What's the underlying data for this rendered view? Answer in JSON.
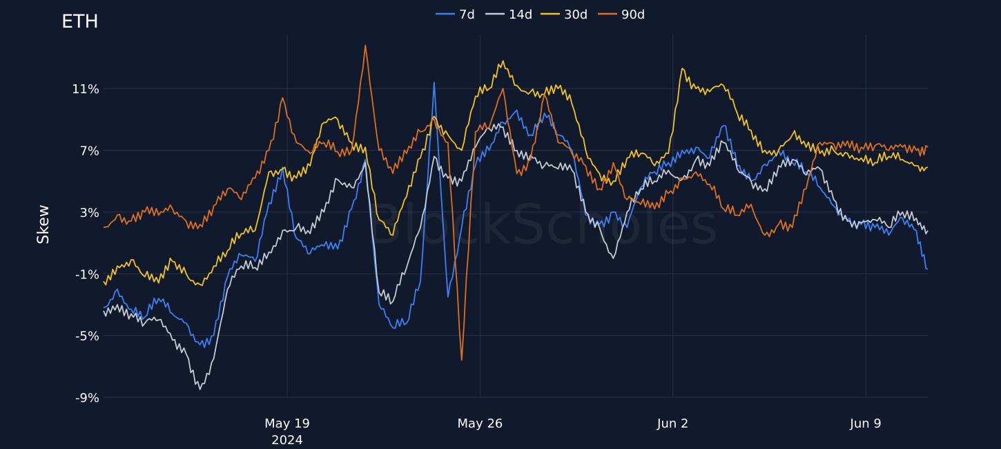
{
  "chart_data": {
    "type": "line",
    "title": "ETH",
    "ylabel": "Skew",
    "xlabel": "",
    "watermark": "BlockScholes",
    "x_ticks": [
      {
        "date": "2024-05-19",
        "label": "May 19",
        "sublabel": "2024"
      },
      {
        "date": "2024-05-26",
        "label": "May 26",
        "sublabel": ""
      },
      {
        "date": "2024-06-02",
        "label": "Jun 2",
        "sublabel": ""
      },
      {
        "date": "2024-06-09",
        "label": "Jun 9",
        "sublabel": ""
      }
    ],
    "y_ticks": [
      {
        "value": 11,
        "label": "11%"
      },
      {
        "value": 7,
        "label": "7%"
      },
      {
        "value": 3,
        "label": "3%"
      },
      {
        "value": -1,
        "label": "-1%"
      },
      {
        "value": -5,
        "label": "-5%"
      },
      {
        "value": -9,
        "label": "-9%"
      }
    ],
    "xlim": [
      "2024-05-12T08:00",
      "2024-06-11T06:00"
    ],
    "ylim": [
      -9,
      14.5
    ],
    "grid": true,
    "legend_position": "top-center",
    "series": [
      {
        "name": "7d",
        "color": "#3b82f6",
        "points": [
          [
            "2024-05-12T08:00",
            -3.2
          ],
          [
            "2024-05-12T20:00",
            -2.0
          ],
          [
            "2024-05-13T08:00",
            -3.3
          ],
          [
            "2024-05-13T20:00",
            -3.8
          ],
          [
            "2024-05-14T08:00",
            -2.6
          ],
          [
            "2024-05-14T20:00",
            -3.6
          ],
          [
            "2024-05-15T08:00",
            -4.2
          ],
          [
            "2024-05-15T20:00",
            -5.6
          ],
          [
            "2024-05-16T08:00",
            -5.0
          ],
          [
            "2024-05-16T20:00",
            -1.2
          ],
          [
            "2024-05-17T08:00",
            0.2
          ],
          [
            "2024-05-17T20:00",
            -0.2
          ],
          [
            "2024-05-18T08:00",
            3.6
          ],
          [
            "2024-05-18T20:00",
            5.9
          ],
          [
            "2024-05-19T08:00",
            1.3
          ],
          [
            "2024-05-19T20:00",
            0.3
          ],
          [
            "2024-05-20T08:00",
            0.8
          ],
          [
            "2024-05-20T20:00",
            0.6
          ],
          [
            "2024-05-21T08:00",
            3.2
          ],
          [
            "2024-05-21T20:00",
            6.4
          ],
          [
            "2024-05-22T08:00",
            -3.0
          ],
          [
            "2024-05-22T20:00",
            -4.5
          ],
          [
            "2024-05-23T08:00",
            -4.2
          ],
          [
            "2024-05-23T20:00",
            -1.5
          ],
          [
            "2024-05-24T08:00",
            11.4
          ],
          [
            "2024-05-24T20:00",
            -2.5
          ],
          [
            "2024-05-25T08:00",
            2.0
          ],
          [
            "2024-05-25T20:00",
            6.0
          ],
          [
            "2024-05-26T08:00",
            7.0
          ],
          [
            "2024-05-26T20:00",
            8.8
          ],
          [
            "2024-05-27T08:00",
            9.6
          ],
          [
            "2024-05-27T20:00",
            8.0
          ],
          [
            "2024-05-28T08:00",
            9.4
          ],
          [
            "2024-05-28T20:00",
            8.0
          ],
          [
            "2024-05-29T08:00",
            7.0
          ],
          [
            "2024-05-29T20:00",
            2.8
          ],
          [
            "2024-05-30T08:00",
            2.2
          ],
          [
            "2024-05-30T20:00",
            3.0
          ],
          [
            "2024-05-31T08:00",
            2.0
          ],
          [
            "2024-05-31T20:00",
            4.6
          ],
          [
            "2024-06-01T08:00",
            5.6
          ],
          [
            "2024-06-01T20:00",
            6.2
          ],
          [
            "2024-06-02T08:00",
            7.0
          ],
          [
            "2024-06-02T20:00",
            7.2
          ],
          [
            "2024-06-03T08:00",
            6.5
          ],
          [
            "2024-06-03T20:00",
            8.6
          ],
          [
            "2024-06-04T08:00",
            6.0
          ],
          [
            "2024-06-04T20:00",
            5.0
          ],
          [
            "2024-06-05T08:00",
            6.1
          ],
          [
            "2024-06-05T20:00",
            7.0
          ],
          [
            "2024-06-06T08:00",
            6.2
          ],
          [
            "2024-06-06T20:00",
            5.6
          ],
          [
            "2024-06-07T08:00",
            4.6
          ],
          [
            "2024-06-07T20:00",
            3.4
          ],
          [
            "2024-06-08T08:00",
            2.5
          ],
          [
            "2024-06-08T20:00",
            2.2
          ],
          [
            "2024-06-09T08:00",
            2.0
          ],
          [
            "2024-06-09T20:00",
            1.5
          ],
          [
            "2024-06-10T08:00",
            2.6
          ],
          [
            "2024-06-10T20:00",
            1.8
          ],
          [
            "2024-06-11T06:00",
            -0.7
          ]
        ]
      },
      {
        "name": "14d",
        "color": "#c6ccd4",
        "points": [
          [
            "2024-05-12T08:00",
            -3.4
          ],
          [
            "2024-05-12T20:00",
            -3.0
          ],
          [
            "2024-05-13T08:00",
            -3.6
          ],
          [
            "2024-05-13T20:00",
            -4.2
          ],
          [
            "2024-05-14T08:00",
            -4.0
          ],
          [
            "2024-05-14T20:00",
            -5.3
          ],
          [
            "2024-05-15T08:00",
            -6.2
          ],
          [
            "2024-05-15T20:00",
            -8.5
          ],
          [
            "2024-05-16T08:00",
            -6.5
          ],
          [
            "2024-05-16T20:00",
            -2.0
          ],
          [
            "2024-05-17T08:00",
            -0.5
          ],
          [
            "2024-05-17T20:00",
            -0.6
          ],
          [
            "2024-05-18T08:00",
            0.4
          ],
          [
            "2024-05-18T20:00",
            1.8
          ],
          [
            "2024-05-19T08:00",
            2.0
          ],
          [
            "2024-05-19T20:00",
            1.6
          ],
          [
            "2024-05-20T08:00",
            3.0
          ],
          [
            "2024-05-20T20:00",
            5.1
          ],
          [
            "2024-05-21T08:00",
            4.6
          ],
          [
            "2024-05-21T20:00",
            6.2
          ],
          [
            "2024-05-22T08:00",
            -2.2
          ],
          [
            "2024-05-22T20:00",
            -2.8
          ],
          [
            "2024-05-23T08:00",
            -0.6
          ],
          [
            "2024-05-23T20:00",
            2.0
          ],
          [
            "2024-05-24T08:00",
            6.6
          ],
          [
            "2024-05-24T20:00",
            5.2
          ],
          [
            "2024-05-25T08:00",
            5.0
          ],
          [
            "2024-05-25T20:00",
            7.2
          ],
          [
            "2024-05-26T08:00",
            8.4
          ],
          [
            "2024-05-26T20:00",
            8.5
          ],
          [
            "2024-05-27T08:00",
            7.0
          ],
          [
            "2024-05-27T20:00",
            6.7
          ],
          [
            "2024-05-28T08:00",
            6.0
          ],
          [
            "2024-05-28T20:00",
            5.8
          ],
          [
            "2024-05-29T08:00",
            5.7
          ],
          [
            "2024-05-29T20:00",
            3.0
          ],
          [
            "2024-05-30T08:00",
            2.0
          ],
          [
            "2024-05-30T20:00",
            0.0
          ],
          [
            "2024-05-31T08:00",
            3.0
          ],
          [
            "2024-05-31T20:00",
            4.5
          ],
          [
            "2024-06-01T08:00",
            5.0
          ],
          [
            "2024-06-01T20:00",
            5.7
          ],
          [
            "2024-06-02T08:00",
            5.1
          ],
          [
            "2024-06-02T20:00",
            6.4
          ],
          [
            "2024-06-03T08:00",
            6.0
          ],
          [
            "2024-06-03T20:00",
            7.5
          ],
          [
            "2024-06-04T08:00",
            5.8
          ],
          [
            "2024-06-04T20:00",
            5.0
          ],
          [
            "2024-06-05T08:00",
            4.5
          ],
          [
            "2024-06-05T20:00",
            6.0
          ],
          [
            "2024-06-06T08:00",
            6.4
          ],
          [
            "2024-06-06T20:00",
            5.4
          ],
          [
            "2024-06-07T08:00",
            5.8
          ],
          [
            "2024-06-07T20:00",
            3.8
          ],
          [
            "2024-06-08T08:00",
            2.4
          ],
          [
            "2024-06-08T20:00",
            2.3
          ],
          [
            "2024-06-09T08:00",
            2.5
          ],
          [
            "2024-06-09T20:00",
            2.0
          ],
          [
            "2024-06-10T08:00",
            3.0
          ],
          [
            "2024-06-10T20:00",
            2.6
          ],
          [
            "2024-06-11T06:00",
            1.8
          ]
        ]
      },
      {
        "name": "30d",
        "color": "#f5c518",
        "points": [
          [
            "2024-05-12T08:00",
            -1.5
          ],
          [
            "2024-05-12T20:00",
            -0.5
          ],
          [
            "2024-05-13T08:00",
            -0.1
          ],
          [
            "2024-05-13T20:00",
            -1.2
          ],
          [
            "2024-05-14T08:00",
            -1.6
          ],
          [
            "2024-05-14T20:00",
            -0.2
          ],
          [
            "2024-05-15T08:00",
            -1.0
          ],
          [
            "2024-05-15T20:00",
            -1.7
          ],
          [
            "2024-05-16T08:00",
            -0.5
          ],
          [
            "2024-05-16T20:00",
            0.5
          ],
          [
            "2024-05-17T08:00",
            1.6
          ],
          [
            "2024-05-17T20:00",
            1.8
          ],
          [
            "2024-05-18T08:00",
            5.6
          ],
          [
            "2024-05-18T20:00",
            5.8
          ],
          [
            "2024-05-19T08:00",
            5.2
          ],
          [
            "2024-05-19T20:00",
            6.0
          ],
          [
            "2024-05-20T08:00",
            8.8
          ],
          [
            "2024-05-20T20:00",
            9.0
          ],
          [
            "2024-05-21T08:00",
            7.5
          ],
          [
            "2024-05-21T20:00",
            7.2
          ],
          [
            "2024-05-22T08:00",
            2.5
          ],
          [
            "2024-05-22T20:00",
            1.5
          ],
          [
            "2024-05-23T08:00",
            4.0
          ],
          [
            "2024-05-23T20:00",
            6.5
          ],
          [
            "2024-05-24T08:00",
            9.2
          ],
          [
            "2024-05-24T20:00",
            8.0
          ],
          [
            "2024-05-25T08:00",
            7.0
          ],
          [
            "2024-05-25T20:00",
            10.5
          ],
          [
            "2024-05-26T08:00",
            11.0
          ],
          [
            "2024-05-26T20:00",
            12.8
          ],
          [
            "2024-05-27T08:00",
            11.2
          ],
          [
            "2024-05-27T20:00",
            10.8
          ],
          [
            "2024-05-28T08:00",
            10.6
          ],
          [
            "2024-05-28T20:00",
            11.0
          ],
          [
            "2024-05-29T08:00",
            10.0
          ],
          [
            "2024-05-29T20:00",
            7.0
          ],
          [
            "2024-05-30T08:00",
            5.5
          ],
          [
            "2024-05-30T20:00",
            5.0
          ],
          [
            "2024-05-31T08:00",
            6.5
          ],
          [
            "2024-05-31T20:00",
            6.8
          ],
          [
            "2024-06-01T08:00",
            6.0
          ],
          [
            "2024-06-01T20:00",
            6.8
          ],
          [
            "2024-06-02T08:00",
            12.3
          ],
          [
            "2024-06-02T20:00",
            11.0
          ],
          [
            "2024-06-03T08:00",
            10.8
          ],
          [
            "2024-06-03T20:00",
            11.2
          ],
          [
            "2024-06-04T08:00",
            9.4
          ],
          [
            "2024-06-04T20:00",
            8.3
          ],
          [
            "2024-06-05T08:00",
            7.0
          ],
          [
            "2024-06-05T20:00",
            7.0
          ],
          [
            "2024-06-06T08:00",
            8.0
          ],
          [
            "2024-06-06T20:00",
            7.2
          ],
          [
            "2024-06-07T08:00",
            6.8
          ],
          [
            "2024-06-07T20:00",
            7.0
          ],
          [
            "2024-06-08T08:00",
            6.8
          ],
          [
            "2024-06-08T20:00",
            6.5
          ],
          [
            "2024-06-09T08:00",
            6.2
          ],
          [
            "2024-06-09T20:00",
            6.6
          ],
          [
            "2024-06-10T08:00",
            6.4
          ],
          [
            "2024-06-10T20:00",
            6.0
          ],
          [
            "2024-06-11T06:00",
            5.9
          ]
        ]
      },
      {
        "name": "90d",
        "color": "#e0701a",
        "points": [
          [
            "2024-05-12T08:00",
            2.0
          ],
          [
            "2024-05-12T20:00",
            2.8
          ],
          [
            "2024-05-13T08:00",
            2.4
          ],
          [
            "2024-05-13T20:00",
            3.0
          ],
          [
            "2024-05-14T08:00",
            2.8
          ],
          [
            "2024-05-14T20:00",
            3.2
          ],
          [
            "2024-05-15T08:00",
            2.4
          ],
          [
            "2024-05-15T20:00",
            2.2
          ],
          [
            "2024-05-16T08:00",
            3.4
          ],
          [
            "2024-05-16T20:00",
            4.5
          ],
          [
            "2024-05-17T08:00",
            3.8
          ],
          [
            "2024-05-17T20:00",
            5.2
          ],
          [
            "2024-05-18T08:00",
            7.0
          ],
          [
            "2024-05-18T20:00",
            10.4
          ],
          [
            "2024-05-19T08:00",
            7.5
          ],
          [
            "2024-05-19T20:00",
            6.8
          ],
          [
            "2024-05-20T08:00",
            7.5
          ],
          [
            "2024-05-20T20:00",
            6.9
          ],
          [
            "2024-05-21T08:00",
            7.0
          ],
          [
            "2024-05-21T20:00",
            13.8
          ],
          [
            "2024-05-22T08:00",
            7.0
          ],
          [
            "2024-05-22T20:00",
            5.5
          ],
          [
            "2024-05-23T08:00",
            6.8
          ],
          [
            "2024-05-23T20:00",
            8.2
          ],
          [
            "2024-05-24T08:00",
            9.0
          ],
          [
            "2024-05-24T20:00",
            7.5
          ],
          [
            "2024-05-25T08:00",
            -6.6
          ],
          [
            "2024-05-25T20:00",
            8.2
          ],
          [
            "2024-05-26T08:00",
            8.5
          ],
          [
            "2024-05-26T20:00",
            11.0
          ],
          [
            "2024-05-27T08:00",
            5.5
          ],
          [
            "2024-05-27T20:00",
            6.4
          ],
          [
            "2024-05-28T08:00",
            10.6
          ],
          [
            "2024-05-28T20:00",
            7.5
          ],
          [
            "2024-05-29T08:00",
            6.8
          ],
          [
            "2024-05-29T20:00",
            6.0
          ],
          [
            "2024-05-30T08:00",
            4.5
          ],
          [
            "2024-05-30T20:00",
            6.2
          ],
          [
            "2024-05-31T08:00",
            3.8
          ],
          [
            "2024-05-31T20:00",
            3.5
          ],
          [
            "2024-06-01T08:00",
            3.2
          ],
          [
            "2024-06-01T20:00",
            4.2
          ],
          [
            "2024-06-02T08:00",
            5.2
          ],
          [
            "2024-06-02T20:00",
            5.6
          ],
          [
            "2024-06-03T08:00",
            4.8
          ],
          [
            "2024-06-03T20:00",
            3.2
          ],
          [
            "2024-06-04T08:00",
            2.8
          ],
          [
            "2024-06-04T20:00",
            3.5
          ],
          [
            "2024-06-05T08:00",
            1.5
          ],
          [
            "2024-06-05T20:00",
            2.2
          ],
          [
            "2024-06-06T08:00",
            2.0
          ],
          [
            "2024-06-06T20:00",
            4.5
          ],
          [
            "2024-06-07T08:00",
            7.5
          ],
          [
            "2024-06-07T20:00",
            7.4
          ],
          [
            "2024-06-08T08:00",
            7.6
          ],
          [
            "2024-06-08T20:00",
            7.2
          ],
          [
            "2024-06-09T08:00",
            7.3
          ],
          [
            "2024-06-09T20:00",
            7.0
          ],
          [
            "2024-06-10T08:00",
            7.2
          ],
          [
            "2024-06-10T20:00",
            7.0
          ],
          [
            "2024-06-11T06:00",
            7.2
          ]
        ]
      }
    ]
  }
}
